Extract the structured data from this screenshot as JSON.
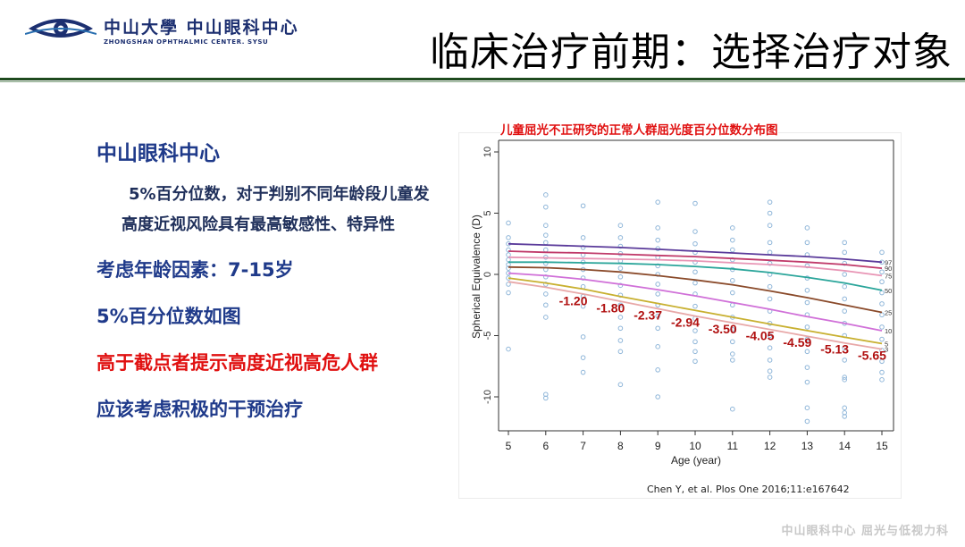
{
  "header": {
    "logo_cn": "中山大學 中山眼科中心",
    "logo_en": "ZHONGSHAN OPHTHALMIC CENTER. SYSU",
    "title": "临床治疗前期：选择治疗对象"
  },
  "left_panel": {
    "heading": "中山眼科中心",
    "line1": "5%百分位数，对于判别不同年龄段儿童发",
    "line2": "高度近视风险具有最高敏感性、特异性",
    "age_factor": "考虑年龄因素：7-15岁",
    "percentile_note": "5%百分位数如图",
    "warning": "高于截点者提示高度近视高危人群",
    "intervention": "应该考虑积极的干预治疗"
  },
  "chart_title": "儿童屈光不正研究的正常人群屈光度百分位数分布图",
  "citation": "Chen Y, et al. Plos One 2016;11:e167642",
  "watermark": "中山眼科中心 屈光与低视力科",
  "colors": {
    "title_red": "#e01010",
    "text_blue": "#1f3a8a",
    "cutoff_label": "#b01010",
    "scatter": "#8fb6d9"
  },
  "chart_data": {
    "type": "line",
    "xlabel": "Age (year)",
    "ylabel": "Spherical Equivalence (D)",
    "xlim": [
      5,
      15
    ],
    "ylim": [
      -12.5,
      10
    ],
    "x_ticks": [
      "5",
      "6",
      "7",
      "8",
      "9",
      "10",
      "11",
      "12",
      "13",
      "14",
      "15"
    ],
    "y_ticks": [
      "10",
      "5",
      "0",
      "-5",
      "-10"
    ],
    "y_tick_values": [
      10,
      5,
      0,
      -5,
      -10
    ],
    "series": [
      {
        "name": "97",
        "color": "#5a3a9a",
        "x": [
          5,
          6,
          7,
          8,
          9,
          10,
          11,
          12,
          13,
          14,
          15
        ],
        "values": [
          2.5,
          2.4,
          2.3,
          2.2,
          2.05,
          1.9,
          1.75,
          1.6,
          1.45,
          1.25,
          1.0
        ]
      },
      {
        "name": "90",
        "color": "#c03a6a",
        "x": [
          5,
          6,
          7,
          8,
          9,
          10,
          11,
          12,
          13,
          14,
          15
        ],
        "values": [
          1.9,
          1.8,
          1.75,
          1.65,
          1.55,
          1.45,
          1.3,
          1.15,
          1.0,
          0.8,
          0.5
        ]
      },
      {
        "name": "75",
        "color": "#e895b5",
        "x": [
          5,
          6,
          7,
          8,
          9,
          10,
          11,
          12,
          13,
          14,
          15
        ],
        "values": [
          1.4,
          1.35,
          1.3,
          1.25,
          1.2,
          1.1,
          0.95,
          0.8,
          0.6,
          0.3,
          -0.1
        ]
      },
      {
        "name": "50",
        "color": "#2aa59a",
        "x": [
          5,
          6,
          7,
          8,
          9,
          10,
          11,
          12,
          13,
          14,
          15
        ],
        "values": [
          1.0,
          1.0,
          0.95,
          0.9,
          0.8,
          0.65,
          0.45,
          0.15,
          -0.25,
          -0.7,
          -1.3
        ]
      },
      {
        "name": "25",
        "color": "#8a4a2a",
        "x": [
          5,
          6,
          7,
          8,
          9,
          10,
          11,
          12,
          13,
          14,
          15
        ],
        "values": [
          0.6,
          0.55,
          0.4,
          0.2,
          -0.1,
          -0.45,
          -0.85,
          -1.35,
          -1.9,
          -2.5,
          -3.1
        ]
      },
      {
        "name": "10",
        "color": "#d070d8",
        "x": [
          5,
          6,
          7,
          8,
          9,
          10,
          11,
          12,
          13,
          14,
          15
        ],
        "values": [
          0.1,
          -0.1,
          -0.4,
          -0.8,
          -1.25,
          -1.75,
          -2.3,
          -2.85,
          -3.45,
          -4.0,
          -4.6
        ]
      },
      {
        "name": "5",
        "color": "#c8b030",
        "x": [
          5,
          6,
          7,
          8,
          9,
          10,
          11,
          12,
          13,
          14,
          15
        ],
        "values": [
          -0.3,
          -0.7,
          -1.2,
          -1.8,
          -2.37,
          -2.94,
          -3.5,
          -4.05,
          -4.59,
          -5.13,
          -5.65
        ]
      },
      {
        "name": "3",
        "color": "#e8a8a8",
        "x": [
          5,
          6,
          7,
          8,
          9,
          10,
          11,
          12,
          13,
          14,
          15
        ],
        "values": [
          -0.6,
          -1.05,
          -1.6,
          -2.2,
          -2.8,
          -3.4,
          -3.95,
          -4.5,
          -5.05,
          -5.6,
          -6.1
        ]
      }
    ],
    "cutoff_labels": [
      {
        "x": 7,
        "y": -1.2,
        "text": "-1.20"
      },
      {
        "x": 8,
        "y": -1.8,
        "text": "-1.80"
      },
      {
        "x": 9,
        "y": -2.37,
        "text": "-2.37"
      },
      {
        "x": 10,
        "y": -2.94,
        "text": "-2.94"
      },
      {
        "x": 11,
        "y": -3.5,
        "text": "-3.50"
      },
      {
        "x": 12,
        "y": -4.05,
        "text": "-4.05"
      },
      {
        "x": 13,
        "y": -4.59,
        "text": "-4.59"
      },
      {
        "x": 14,
        "y": -5.13,
        "text": "-5.13"
      },
      {
        "x": 15,
        "y": -5.65,
        "text": "-5.65"
      }
    ],
    "scatter": [
      {
        "x": 5,
        "values": [
          4.2,
          3.0,
          2.5,
          2.0,
          1.6,
          1.2,
          0.8,
          0.5,
          0.1,
          -0.3,
          -0.8,
          -1.5,
          -6.1
        ]
      },
      {
        "x": 6,
        "values": [
          6.5,
          5.5,
          4.0,
          3.2,
          2.6,
          2.0,
          1.4,
          0.9,
          0.4,
          -0.2,
          -0.8,
          -1.6,
          -2.5,
          -3.5,
          -9.8,
          -10.1
        ]
      },
      {
        "x": 7,
        "values": [
          5.6,
          3.0,
          2.2,
          1.6,
          1.0,
          0.4,
          -0.3,
          -1.0,
          -1.8,
          -2.6,
          -5.1,
          -6.8,
          -8.0
        ]
      },
      {
        "x": 8,
        "values": [
          4.0,
          3.0,
          2.3,
          1.7,
          1.1,
          0.5,
          -0.2,
          -0.9,
          -1.7,
          -2.5,
          -3.5,
          -4.4,
          -5.4,
          -6.3,
          -9.0
        ]
      },
      {
        "x": 9,
        "values": [
          5.9,
          3.8,
          2.8,
          2.1,
          1.4,
          0.7,
          0.0,
          -0.8,
          -1.6,
          -2.5,
          -3.4,
          -4.4,
          -5.9,
          -7.8,
          -10.0
        ]
      },
      {
        "x": 10,
        "values": [
          5.8,
          3.5,
          2.5,
          1.8,
          1.0,
          0.2,
          -0.7,
          -1.6,
          -2.6,
          -3.6,
          -4.6,
          -5.5,
          -6.3,
          -7.1
        ]
      },
      {
        "x": 11,
        "values": [
          3.8,
          2.8,
          2.0,
          1.2,
          0.4,
          -0.5,
          -1.5,
          -2.5,
          -3.5,
          -4.5,
          -5.5,
          -6.5,
          -7.0,
          -11.0
        ]
      },
      {
        "x": 12,
        "values": [
          5.9,
          5.0,
          4.0,
          2.6,
          1.8,
          0.9,
          0.0,
          -1.0,
          -2.0,
          -3.0,
          -4.0,
          -5.0,
          -6.0,
          -7.0,
          -7.9,
          -8.4
        ]
      },
      {
        "x": 13,
        "values": [
          3.8,
          2.6,
          1.6,
          0.7,
          -0.3,
          -1.3,
          -2.3,
          -3.3,
          -4.3,
          -5.3,
          -6.3,
          -7.6,
          -8.8,
          -10.9,
          -12.0
        ]
      },
      {
        "x": 14,
        "values": [
          2.6,
          1.8,
          0.9,
          0.0,
          -1.0,
          -2.0,
          -3.0,
          -4.0,
          -5.0,
          -6.0,
          -7.0,
          -8.4,
          -8.6,
          -10.9,
          -11.3,
          -11.6
        ]
      },
      {
        "x": 15,
        "values": [
          1.8,
          1.0,
          0.2,
          -0.6,
          -1.5,
          -2.4,
          -3.3,
          -4.3,
          -5.3,
          -6.2,
          -7.1,
          -8.0,
          -8.6
        ]
      }
    ]
  }
}
